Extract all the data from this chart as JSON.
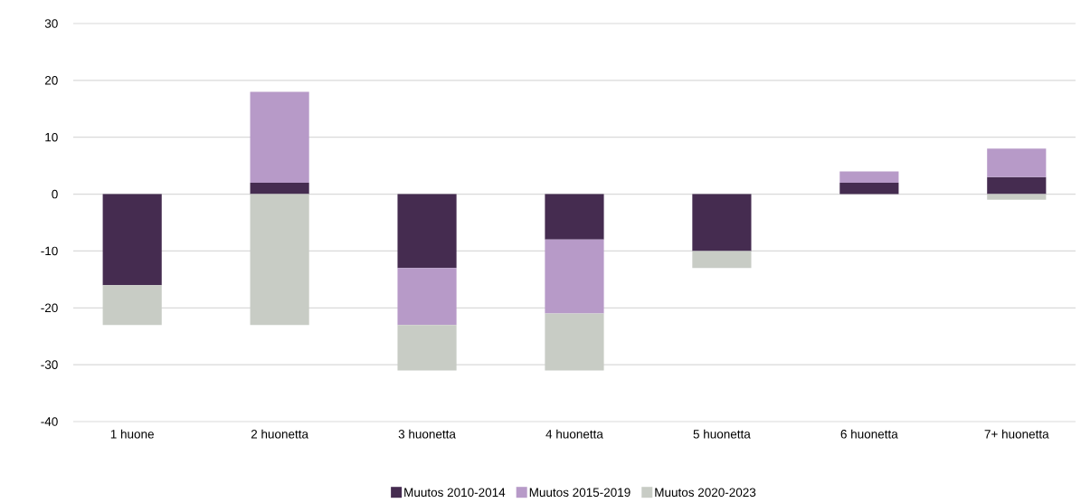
{
  "chart_data": {
    "type": "bar",
    "stacked": true,
    "categories": [
      "1 huone",
      "2 huonetta",
      "3 huonetta",
      "4 huonetta",
      "5 huonetta",
      "6 huonetta",
      "7+ huonetta"
    ],
    "series": [
      {
        "name": "Muutos 2010-2014",
        "color": "#452c50",
        "values": [
          -16,
          2,
          -13,
          -8,
          -10,
          2,
          3
        ]
      },
      {
        "name": "Muutos 2015-2019",
        "color": "#b79ac8",
        "values": [
          0,
          16,
          -10,
          -13,
          0,
          2,
          5
        ]
      },
      {
        "name": "Muutos 2020-2023",
        "color": "#c8ccc5",
        "values": [
          -7,
          -23,
          -8,
          -10,
          -3,
          0,
          -1
        ]
      }
    ],
    "ylim": [
      -40,
      30
    ],
    "yticks": [
      -40,
      -30,
      -20,
      -10,
      0,
      10,
      20,
      30
    ],
    "grid": "y",
    "legend": "bottom"
  }
}
